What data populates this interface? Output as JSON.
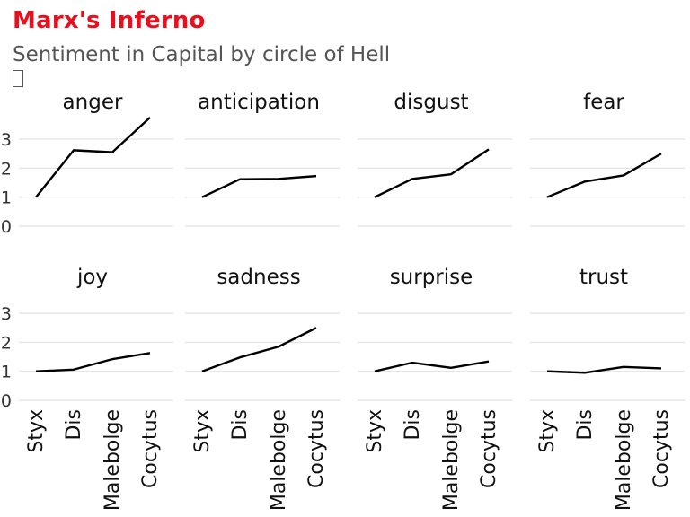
{
  "header": {
    "title": "Marx's Inferno",
    "subtitle": "Sentiment in Capital by circle of Hell"
  },
  "chart_data": {
    "type": "line",
    "facet_layout": "4 columns x 2 rows",
    "categories": [
      "Styx",
      "Dis",
      "Malebolge",
      "Cocytus"
    ],
    "y_ticks": [
      0,
      1,
      2,
      3
    ],
    "ylim": [
      0,
      3.8
    ],
    "grid": true,
    "line_color": "#000000",
    "panels": [
      {
        "name": "anger",
        "values": [
          1.0,
          2.62,
          2.55,
          3.75
        ]
      },
      {
        "name": "anticipation",
        "values": [
          1.0,
          1.62,
          1.63,
          1.73
        ]
      },
      {
        "name": "disgust",
        "values": [
          1.0,
          1.63,
          1.79,
          2.65
        ]
      },
      {
        "name": "fear",
        "values": [
          1.0,
          1.54,
          1.75,
          2.5
        ]
      },
      {
        "name": "joy",
        "values": [
          1.0,
          1.06,
          1.42,
          1.63
        ]
      },
      {
        "name": "sadness",
        "values": [
          1.0,
          1.48,
          1.85,
          2.5
        ]
      },
      {
        "name": "surprise",
        "values": [
          1.0,
          1.3,
          1.12,
          1.34
        ]
      },
      {
        "name": "trust",
        "values": [
          1.0,
          0.95,
          1.15,
          1.1
        ]
      }
    ]
  }
}
